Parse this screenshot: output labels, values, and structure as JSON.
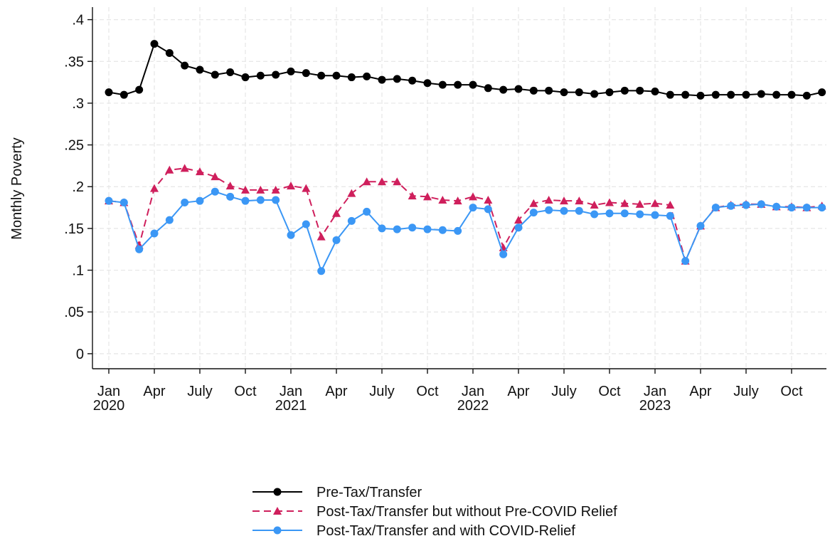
{
  "chart_data": {
    "type": "line",
    "y_label": "Monthly Poverty",
    "categories": [
      "Jan\n2020",
      null,
      null,
      "Apr",
      null,
      null,
      "July",
      null,
      null,
      "Oct",
      null,
      null,
      "Jan\n2021",
      null,
      null,
      "Apr",
      null,
      null,
      "July",
      null,
      null,
      "Oct",
      null,
      null,
      "Jan\n2022",
      null,
      null,
      "Apr",
      null,
      null,
      "July",
      null,
      null,
      "Oct",
      null,
      null,
      "Jan\n2023",
      null,
      null,
      "Apr",
      null,
      null,
      "July",
      null,
      null,
      "Oct",
      null,
      null
    ],
    "ylim": [
      -0.018,
      0.415
    ],
    "yticks": [
      0,
      {
        "value": 0.05,
        "label": ".05"
      },
      {
        "value": 0.1,
        "label": ".1"
      },
      {
        "value": 0.15,
        "label": ".15"
      },
      {
        "value": 0.2,
        "label": ".2"
      },
      {
        "value": 0.25,
        "label": ".25"
      },
      {
        "value": 0.3,
        "label": ".3"
      },
      {
        "value": 0.35,
        "label": ".35"
      },
      {
        "value": 0.4,
        "label": ".4"
      }
    ],
    "grid": true,
    "legend": "bottom",
    "series": [
      {
        "name": "Pre-Tax/Transfer",
        "color": "#000000",
        "marker": "circle",
        "dash": false,
        "values": [
          0.313,
          0.31,
          0.316,
          0.371,
          0.36,
          0.345,
          0.34,
          0.334,
          0.337,
          0.331,
          0.333,
          0.334,
          0.338,
          0.336,
          0.333,
          0.333,
          0.331,
          0.332,
          0.328,
          0.329,
          0.327,
          0.324,
          0.322,
          0.322,
          0.322,
          0.318,
          0.316,
          0.317,
          0.315,
          0.315,
          0.313,
          0.313,
          0.311,
          0.313,
          0.315,
          0.315,
          0.314,
          0.31,
          0.31,
          0.309,
          0.31,
          0.31,
          0.31,
          0.311,
          0.31,
          0.31,
          0.309,
          0.313
        ]
      },
      {
        "name": "Post-Tax/Transfer but without Pre-COVID Relief",
        "color": "#cf1f5c",
        "marker": "triangle",
        "dash": true,
        "values": [
          0.183,
          0.181,
          0.13,
          0.198,
          0.22,
          0.222,
          0.218,
          0.212,
          0.201,
          0.196,
          0.196,
          0.196,
          0.201,
          0.198,
          0.14,
          0.168,
          0.192,
          0.206,
          0.206,
          0.206,
          0.189,
          0.188,
          0.184,
          0.183,
          0.188,
          0.184,
          0.127,
          0.16,
          0.18,
          0.184,
          0.183,
          0.183,
          0.178,
          0.181,
          0.18,
          0.179,
          0.18,
          0.178,
          0.111,
          0.153,
          0.175,
          0.178,
          0.179,
          0.179,
          0.176,
          0.176,
          0.175,
          0.177
        ]
      },
      {
        "name": "Post-Tax/Transfer and with COVID-Relief",
        "color": "#3b97f5",
        "marker": "circle",
        "dash": false,
        "values": [
          0.183,
          0.181,
          0.125,
          0.144,
          0.16,
          0.181,
          0.183,
          0.194,
          0.188,
          0.183,
          0.184,
          0.184,
          0.142,
          0.155,
          0.099,
          0.136,
          0.159,
          0.17,
          0.15,
          0.149,
          0.151,
          0.149,
          0.148,
          0.147,
          0.175,
          0.173,
          0.119,
          0.151,
          0.169,
          0.172,
          0.171,
          0.171,
          0.167,
          0.168,
          0.168,
          0.167,
          0.166,
          0.165,
          0.111,
          0.153,
          0.175,
          0.177,
          0.178,
          0.179,
          0.176,
          0.175,
          0.175,
          0.175
        ]
      }
    ]
  }
}
